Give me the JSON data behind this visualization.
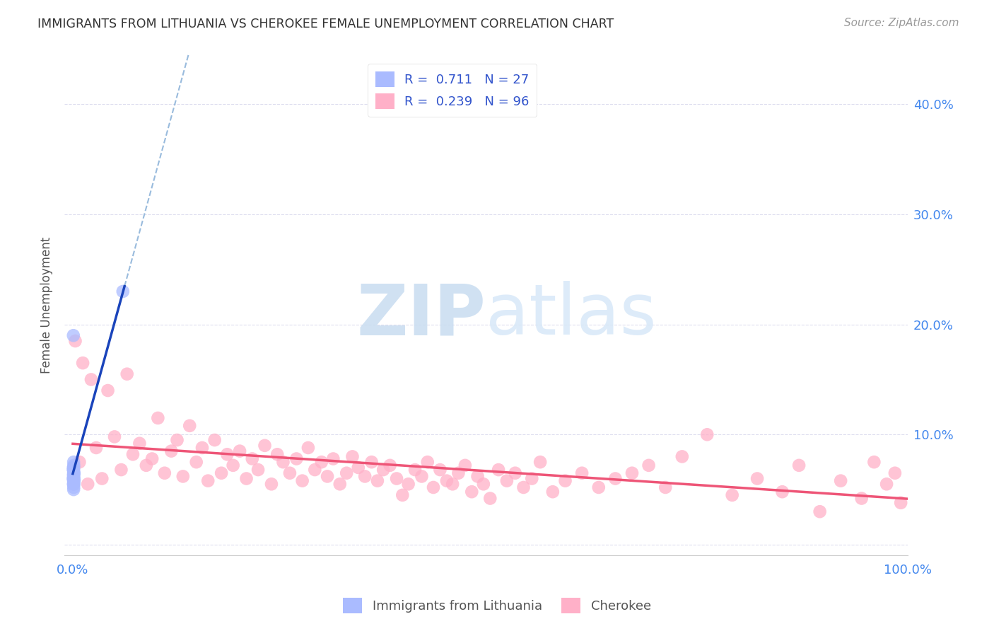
{
  "title": "IMMIGRANTS FROM LITHUANIA VS CHEROKEE FEMALE UNEMPLOYMENT CORRELATION CHART",
  "source": "Source: ZipAtlas.com",
  "ylabel": "Female Unemployment",
  "watermark_zip": "ZIP",
  "watermark_atlas": "atlas",
  "legend_labels": [
    "Immigrants from Lithuania",
    "Cherokee"
  ],
  "blue_R": "0.711",
  "blue_N": "27",
  "pink_R": "0.239",
  "pink_N": "96",
  "blue_scatter_color": "#AABBFF",
  "pink_scatter_color": "#FFB0C8",
  "trend_blue_color": "#1A44BB",
  "trend_pink_color": "#EE5577",
  "dashed_line_color": "#99BBDD",
  "background_color": "#FFFFFF",
  "grid_color": "#DDDDEE",
  "xlim": [
    -0.01,
    1.0
  ],
  "ylim": [
    -0.01,
    0.445
  ],
  "y_ticks_right": [
    0.0,
    0.1,
    0.2,
    0.3,
    0.4
  ],
  "y_tick_labels_right": [
    "",
    "10.0%",
    "20.0%",
    "30.0%",
    "40.0%"
  ],
  "blue_points_x": [
    0.0008,
    0.0012,
    0.0009,
    0.0015,
    0.0007,
    0.0011,
    0.0013,
    0.0006,
    0.001,
    0.0014,
    0.0008,
    0.0009,
    0.0011,
    0.0007,
    0.0012,
    0.001,
    0.0008,
    0.0013,
    0.0009,
    0.0011,
    0.001,
    0.0008,
    0.06,
    0.0009,
    0.0011,
    0.0007,
    0.001
  ],
  "blue_points_y": [
    0.068,
    0.072,
    0.058,
    0.065,
    0.07,
    0.062,
    0.055,
    0.06,
    0.075,
    0.058,
    0.063,
    0.068,
    0.052,
    0.06,
    0.065,
    0.07,
    0.055,
    0.06,
    0.065,
    0.058,
    0.063,
    0.068,
    0.23,
    0.055,
    0.06,
    0.19,
    0.05
  ],
  "pink_points_x": [
    0.003,
    0.008,
    0.012,
    0.018,
    0.022,
    0.028,
    0.035,
    0.042,
    0.05,
    0.058,
    0.065,
    0.072,
    0.08,
    0.088,
    0.095,
    0.102,
    0.11,
    0.118,
    0.125,
    0.132,
    0.14,
    0.148,
    0.155,
    0.162,
    0.17,
    0.178,
    0.185,
    0.192,
    0.2,
    0.208,
    0.215,
    0.222,
    0.23,
    0.238,
    0.245,
    0.252,
    0.26,
    0.268,
    0.275,
    0.282,
    0.29,
    0.298,
    0.305,
    0.312,
    0.32,
    0.328,
    0.335,
    0.342,
    0.35,
    0.358,
    0.365,
    0.372,
    0.38,
    0.388,
    0.395,
    0.402,
    0.41,
    0.418,
    0.425,
    0.432,
    0.44,
    0.448,
    0.455,
    0.462,
    0.47,
    0.478,
    0.485,
    0.492,
    0.5,
    0.51,
    0.52,
    0.53,
    0.54,
    0.55,
    0.56,
    0.575,
    0.59,
    0.61,
    0.63,
    0.65,
    0.67,
    0.69,
    0.71,
    0.73,
    0.76,
    0.79,
    0.82,
    0.85,
    0.87,
    0.895,
    0.92,
    0.945,
    0.96,
    0.975,
    0.985,
    0.992
  ],
  "pink_points_y": [
    0.185,
    0.075,
    0.165,
    0.055,
    0.15,
    0.088,
    0.06,
    0.14,
    0.098,
    0.068,
    0.155,
    0.082,
    0.092,
    0.072,
    0.078,
    0.115,
    0.065,
    0.085,
    0.095,
    0.062,
    0.108,
    0.075,
    0.088,
    0.058,
    0.095,
    0.065,
    0.082,
    0.072,
    0.085,
    0.06,
    0.078,
    0.068,
    0.09,
    0.055,
    0.082,
    0.075,
    0.065,
    0.078,
    0.058,
    0.088,
    0.068,
    0.075,
    0.062,
    0.078,
    0.055,
    0.065,
    0.08,
    0.07,
    0.062,
    0.075,
    0.058,
    0.068,
    0.072,
    0.06,
    0.045,
    0.055,
    0.068,
    0.062,
    0.075,
    0.052,
    0.068,
    0.058,
    0.055,
    0.065,
    0.072,
    0.048,
    0.062,
    0.055,
    0.042,
    0.068,
    0.058,
    0.065,
    0.052,
    0.06,
    0.075,
    0.048,
    0.058,
    0.065,
    0.052,
    0.06,
    0.065,
    0.072,
    0.052,
    0.08,
    0.1,
    0.045,
    0.06,
    0.048,
    0.072,
    0.03,
    0.058,
    0.042,
    0.075,
    0.055,
    0.065,
    0.038
  ],
  "figsize": [
    14.06,
    8.92
  ],
  "dpi": 100
}
